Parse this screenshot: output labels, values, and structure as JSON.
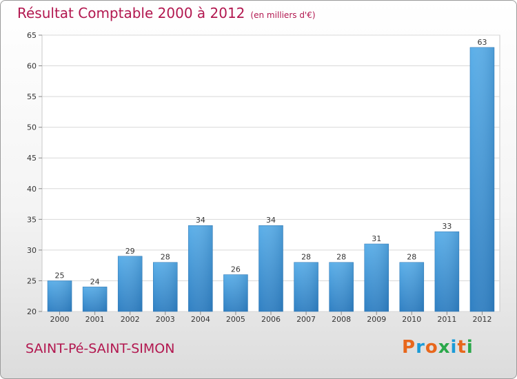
{
  "header": {
    "title": "Résultat Comptable 2000 à 2012",
    "unit": "(en milliers d'€)"
  },
  "footer": {
    "commune": "SAINT-Pé-SAINT-SIMON",
    "logo_text": "Proxiti",
    "logo_colors": [
      "#e8671c",
      "#1b9bd7",
      "#e8671c",
      "#2aa84a",
      "#1b9bd7",
      "#e8671c",
      "#2aa84a"
    ]
  },
  "chart_data": {
    "type": "bar",
    "title": "Résultat Comptable 2000 à 2012",
    "xlabel": "",
    "ylabel": "",
    "categories": [
      "2000",
      "2001",
      "2002",
      "2003",
      "2004",
      "2005",
      "2006",
      "2007",
      "2008",
      "2009",
      "2010",
      "2011",
      "2012"
    ],
    "values": [
      25,
      24,
      29,
      28,
      34,
      26,
      34,
      28,
      28,
      31,
      28,
      33,
      63
    ],
    "ylim": [
      20,
      65
    ],
    "yticks": [
      20,
      25,
      30,
      35,
      40,
      45,
      50,
      55,
      60,
      65
    ],
    "grid": true,
    "bar_color": "#3d8fd2"
  }
}
